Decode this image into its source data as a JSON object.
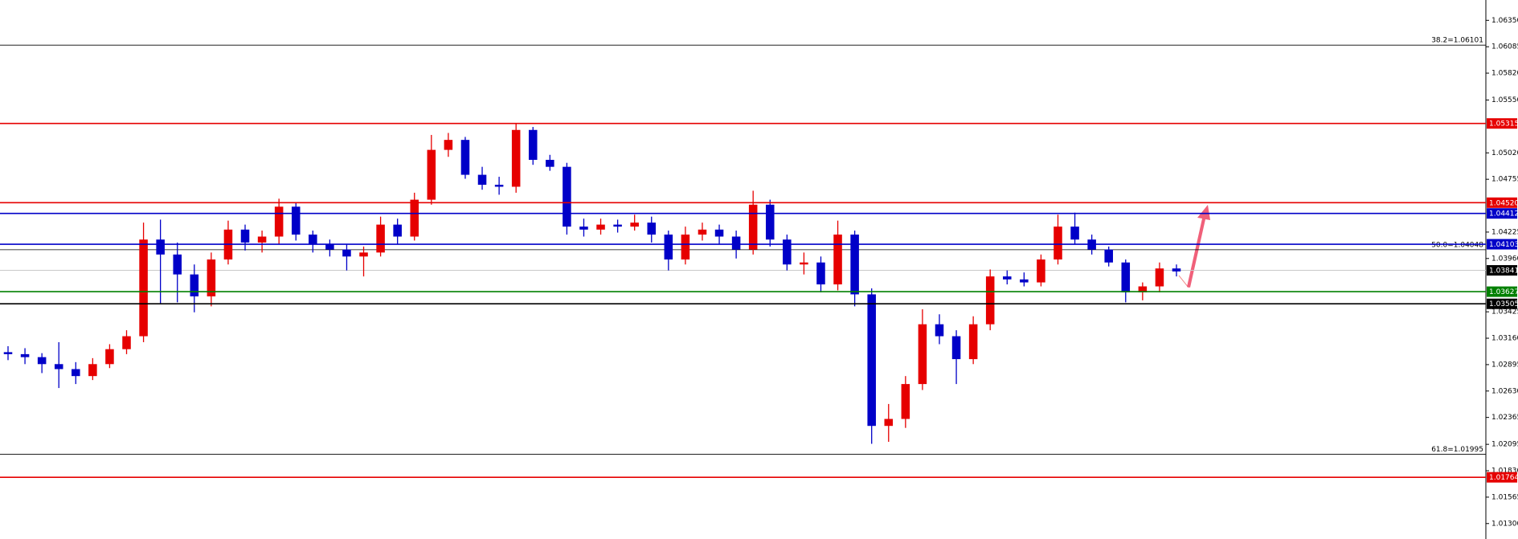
{
  "chart_data": {
    "type": "candlestick",
    "up_color": "#e60000",
    "down_color": "#0000c8",
    "open": [
      1.0302,
      1.03,
      1.0297,
      1.029,
      1.0285,
      1.0278,
      1.029,
      1.0305,
      1.0318,
      1.0415,
      1.04,
      1.038,
      1.0358,
      1.0395,
      1.0425,
      1.0412,
      1.0418,
      1.0448,
      1.042,
      1.041,
      1.0405,
      1.0398,
      1.0402,
      1.043,
      1.0418,
      1.0455,
      1.0505,
      1.0515,
      1.048,
      1.047,
      1.0468,
      1.0525,
      1.0495,
      1.0488,
      1.0428,
      1.0425,
      1.043,
      1.0428,
      1.0432,
      1.042,
      1.0395,
      1.042,
      1.0425,
      1.0418,
      1.0405,
      1.045,
      1.0415,
      1.039,
      1.0392,
      1.037,
      1.042,
      1.036,
      1.0228,
      1.0235,
      1.027,
      1.033,
      1.0318,
      1.0295,
      1.033,
      1.0378,
      1.0375,
      1.0372,
      1.0395,
      1.0428,
      1.0415,
      1.0405,
      1.0392,
      1.0362,
      1.0368,
      1.0386
    ],
    "high": [
      1.0308,
      1.0306,
      1.0301,
      1.0312,
      1.0292,
      1.0296,
      1.031,
      1.0324,
      1.0432,
      1.0435,
      1.0412,
      1.039,
      1.0402,
      1.0434,
      1.043,
      1.0424,
      1.0456,
      1.0452,
      1.0424,
      1.0415,
      1.041,
      1.0408,
      1.0438,
      1.0436,
      1.0462,
      1.052,
      1.0522,
      1.0518,
      1.0488,
      1.0478,
      1.0532,
      1.0528,
      1.05,
      1.0492,
      1.0436,
      1.0436,
      1.0435,
      1.044,
      1.0438,
      1.0424,
      1.0428,
      1.0432,
      1.043,
      1.0424,
      1.0464,
      1.0455,
      1.042,
      1.0402,
      1.0398,
      1.0434,
      1.0424,
      1.0366,
      1.025,
      1.0278,
      1.0345,
      1.034,
      1.0324,
      1.0338,
      1.0385,
      1.0384,
      1.0382,
      1.04,
      1.044,
      1.0442,
      1.042,
      1.0408,
      1.0395,
      1.0372,
      1.0392,
      1.039
    ],
    "low": [
      1.0294,
      1.029,
      1.0281,
      1.0266,
      1.027,
      1.0274,
      1.0286,
      1.03,
      1.0312,
      1.035,
      1.0352,
      1.0342,
      1.0348,
      1.039,
      1.0404,
      1.0402,
      1.041,
      1.0414,
      1.0402,
      1.0398,
      1.0384,
      1.0378,
      1.0398,
      1.041,
      1.0414,
      1.045,
      1.0498,
      1.0476,
      1.0465,
      1.046,
      1.0462,
      1.049,
      1.0484,
      1.042,
      1.0418,
      1.042,
      1.0422,
      1.0424,
      1.0412,
      1.0384,
      1.039,
      1.0414,
      1.041,
      1.0396,
      1.04,
      1.0408,
      1.0384,
      1.038,
      1.0362,
      1.0364,
      1.0348,
      1.021,
      1.0212,
      1.0226,
      1.0264,
      1.031,
      1.027,
      1.029,
      1.0324,
      1.037,
      1.0368,
      1.0368,
      1.039,
      1.041,
      1.04,
      1.0388,
      1.0352,
      1.0354,
      1.0362,
      1.0378
    ],
    "close": [
      1.03,
      1.0297,
      1.029,
      1.0285,
      1.0278,
      1.029,
      1.0305,
      1.0318,
      1.0415,
      1.04,
      1.038,
      1.0358,
      1.0395,
      1.0425,
      1.0412,
      1.0418,
      1.0448,
      1.042,
      1.041,
      1.0405,
      1.0398,
      1.0402,
      1.043,
      1.0418,
      1.0455,
      1.0505,
      1.0515,
      1.048,
      1.047,
      1.0468,
      1.0525,
      1.0495,
      1.0488,
      1.0428,
      1.0425,
      1.043,
      1.0428,
      1.0432,
      1.042,
      1.0395,
      1.042,
      1.0425,
      1.0418,
      1.0405,
      1.045,
      1.0415,
      1.039,
      1.0392,
      1.037,
      1.042,
      1.036,
      1.0228,
      1.0235,
      1.027,
      1.033,
      1.0318,
      1.0295,
      1.033,
      1.0378,
      1.0375,
      1.0372,
      1.0395,
      1.0428,
      1.0415,
      1.0405,
      1.0392,
      1.0362,
      1.0368,
      1.0386,
      1.0383
    ],
    "ylim": [
      1.01145,
      1.06554
    ],
    "yticks": [
      {
        "value": 1.0635,
        "label": "1.06350"
      },
      {
        "value": 1.06085,
        "label": "1.06085"
      },
      {
        "value": 1.0582,
        "label": "1.05820"
      },
      {
        "value": 1.0555,
        "label": "1.05550"
      },
      {
        "value": 1.0502,
        "label": "1.05020"
      },
      {
        "value": 1.04755,
        "label": "1.04755"
      },
      {
        "value": 1.04225,
        "label": "1.04225"
      },
      {
        "value": 1.0396,
        "label": "1.03960"
      },
      {
        "value": 1.03425,
        "label": "1.03425"
      },
      {
        "value": 1.0316,
        "label": "1.03160"
      },
      {
        "value": 1.02895,
        "label": "1.02895"
      },
      {
        "value": 1.0263,
        "label": "1.02630"
      },
      {
        "value": 1.02365,
        "label": "1.02365"
      },
      {
        "value": 1.02095,
        "label": "1.02095"
      },
      {
        "value": 1.0183,
        "label": "1.01830"
      },
      {
        "value": 1.01565,
        "label": "1.01565"
      },
      {
        "value": 1.013,
        "label": "1.01300"
      }
    ],
    "levels": [
      {
        "value": 1.05315,
        "label": "1.05315",
        "color": "#e60000"
      },
      {
        "value": 1.0452,
        "label": "1.04520",
        "color": "#e60000"
      },
      {
        "value": 1.04412,
        "label": "1.04412",
        "color": "#0000c8"
      },
      {
        "value": 1.04103,
        "label": "1.04103",
        "color": "#0000c8"
      },
      {
        "value": 1.03627,
        "label": "1.03627",
        "color": "#008000"
      },
      {
        "value": 1.03505,
        "label": "1.03505",
        "color": "#000000"
      },
      {
        "value": 1.01764,
        "label": "1.01764",
        "color": "#e60000"
      }
    ],
    "current_price": {
      "value": 1.03841,
      "label": "1.03841"
    },
    "fib_levels": [
      {
        "value": 1.06101,
        "label": "38.2=1.06101"
      },
      {
        "value": 1.04048,
        "label": "50.0=1.04048"
      },
      {
        "value": 1.01995,
        "label": "61.8=1.01995"
      }
    ]
  }
}
